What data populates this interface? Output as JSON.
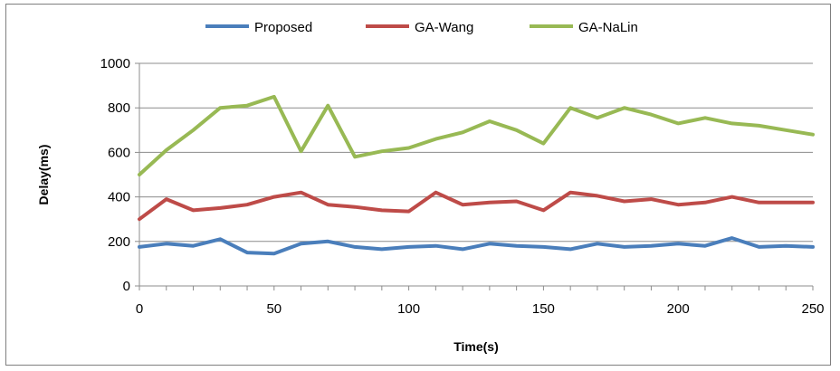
{
  "chart_data": {
    "type": "line",
    "xlabel": "Time(s)",
    "ylabel": "Delay(ms)",
    "xlim": [
      0,
      250
    ],
    "ylim": [
      0,
      1000
    ],
    "xticks": [
      0,
      50,
      100,
      150,
      200,
      250
    ],
    "yticks": [
      0,
      200,
      400,
      600,
      800,
      1000
    ],
    "grid": "horizontal",
    "legend_position": "top",
    "x": [
      0,
      10,
      20,
      30,
      40,
      50,
      60,
      70,
      80,
      90,
      100,
      110,
      120,
      130,
      140,
      150,
      160,
      170,
      180,
      190,
      200,
      210,
      220,
      230,
      240,
      250
    ],
    "series": [
      {
        "name": "Proposed",
        "color": "#4a7ebb",
        "values": [
          175,
          190,
          180,
          210,
          150,
          145,
          190,
          200,
          175,
          165,
          175,
          180,
          165,
          190,
          180,
          175,
          165,
          190,
          175,
          180,
          190,
          180,
          215,
          175,
          180,
          175
        ]
      },
      {
        "name": "GA-Wang",
        "color": "#be4b48",
        "values": [
          300,
          390,
          340,
          350,
          365,
          400,
          420,
          365,
          355,
          340,
          335,
          420,
          365,
          375,
          380,
          340,
          420,
          405,
          380,
          390,
          365,
          375,
          400,
          375,
          375,
          375
        ]
      },
      {
        "name": "GA-NaLin",
        "color": "#98b954",
        "values": [
          500,
          610,
          700,
          800,
          810,
          850,
          605,
          810,
          580,
          605,
          620,
          660,
          690,
          740,
          700,
          640,
          800,
          755,
          800,
          770,
          730,
          755,
          730,
          720,
          700,
          680
        ]
      }
    ]
  }
}
